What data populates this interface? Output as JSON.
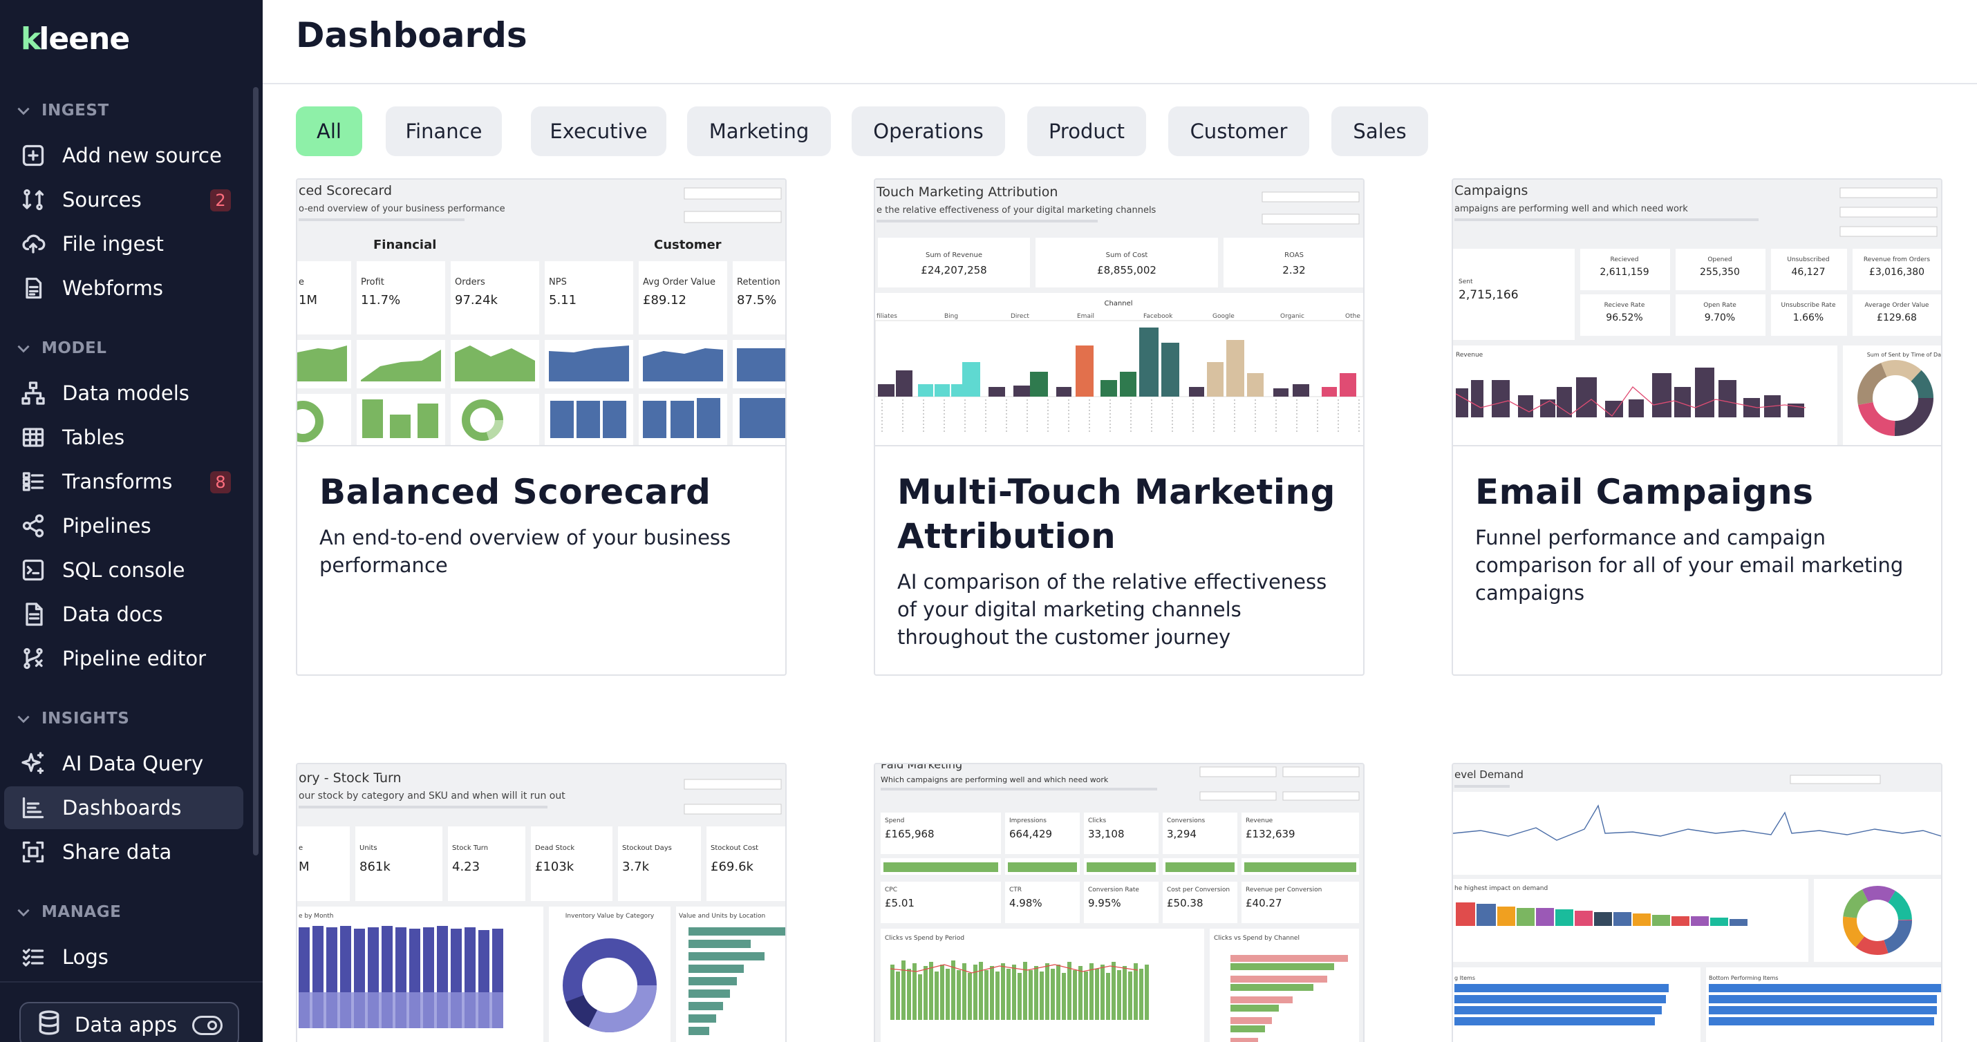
{
  "app": {
    "logo": "kleene"
  },
  "sidebar": {
    "sections": [
      {
        "label": "INGEST",
        "items": [
          {
            "label": "Add new source",
            "icon": "plus-square-icon"
          },
          {
            "label": "Sources",
            "icon": "sources-icon",
            "badge": "2"
          },
          {
            "label": "File ingest",
            "icon": "upload-cloud-icon"
          },
          {
            "label": "Webforms",
            "icon": "form-icon"
          }
        ]
      },
      {
        "label": "MODEL",
        "items": [
          {
            "label": "Data models",
            "icon": "hierarchy-icon"
          },
          {
            "label": "Tables",
            "icon": "table-icon"
          },
          {
            "label": "Transforms",
            "icon": "list-icon",
            "badge": "8"
          },
          {
            "label": "Pipelines",
            "icon": "share-nodes-icon"
          },
          {
            "label": "SQL console",
            "icon": "terminal-icon"
          },
          {
            "label": "Data docs",
            "icon": "document-icon"
          },
          {
            "label": "Pipeline editor",
            "icon": "pipeline-editor-icon"
          }
        ]
      },
      {
        "label": "INSIGHTS",
        "items": [
          {
            "label": "AI Data Query",
            "icon": "sparkle-icon"
          },
          {
            "label": "Dashboards",
            "icon": "dashboard-icon",
            "active": true
          },
          {
            "label": "Share data",
            "icon": "share-data-icon"
          }
        ]
      },
      {
        "label": "MANAGE",
        "items": [
          {
            "label": "Logs",
            "icon": "checklist-icon"
          }
        ]
      }
    ],
    "data_apps": {
      "label": "Data apps",
      "icon": "database-icon"
    }
  },
  "main": {
    "title": "Dashboards",
    "filters": [
      {
        "label": "All",
        "active": true
      },
      {
        "label": "Finance"
      },
      {
        "label": "Executive"
      },
      {
        "label": "Marketing"
      },
      {
        "label": "Operations"
      },
      {
        "label": "Product"
      },
      {
        "label": "Customer"
      },
      {
        "label": "Sales"
      }
    ],
    "cards": [
      {
        "title": "Balanced Scorecard",
        "description": "An end-to-end overview of your business performance",
        "thumb": {
          "heading": "ced Scorecard",
          "sub": "o-end overview of your business performance",
          "group1": "Financial",
          "group2": "Customer",
          "kpis": [
            {
              "label": "e",
              "value": "1M"
            },
            {
              "label": "Profit",
              "value": "11.7%"
            },
            {
              "label": "Orders",
              "value": "97.24k"
            },
            {
              "label": "NPS",
              "value": "5.11"
            },
            {
              "label": "Avg Order Value",
              "value": "£89.12"
            },
            {
              "label": "Retention",
              "value": "87.5%"
            }
          ]
        }
      },
      {
        "title": "Multi-Touch Marketing Attribution",
        "description": "AI comparison of the relative effectiveness of your digital marketing channels throughout the customer journey",
        "thumb": {
          "heading": "Touch Marketing Attribution",
          "sub": "e the relative effectiveness of your digital marketing channels",
          "kpis": [
            {
              "label": "Sum of Revenue",
              "value": "£24,207,258"
            },
            {
              "label": "Sum of Cost",
              "value": "£8,855,002"
            },
            {
              "label": "ROAS",
              "value": "2.32"
            }
          ],
          "channel_label": "Channel",
          "channels": [
            "filiates",
            "Bing",
            "Direct",
            "Email",
            "Facebook",
            "Google",
            "Organic",
            "Othe"
          ]
        }
      },
      {
        "title": "Email Campaigns",
        "description": "Funnel performance and campaign comparison for all of your email marketing campaigns",
        "thumb": {
          "heading": "Campaigns",
          "sub": "ampaigns are performing well and which need work",
          "kpis": [
            {
              "label": "Sent",
              "value": "2,715,166"
            },
            {
              "label": "Recieved",
              "value": "2,611,159"
            },
            {
              "label": "Opened",
              "value": "255,350"
            },
            {
              "label": "Unsubscribed",
              "value": "46,127"
            },
            {
              "label": "Revenue from Orders",
              "value": "£3,016,380"
            },
            {
              "label": "Recieve Rate",
              "value": "96.52%"
            },
            {
              "label": "Open Rate",
              "value": "9.70%"
            },
            {
              "label": "Unsubscribe Rate",
              "value": "1.66%"
            },
            {
              "label": "Average Order Value",
              "value": "£129.68"
            }
          ],
          "chart_label": "Revenue",
          "donut_label": "Sum of Sent by Time of Da"
        }
      },
      {
        "thumb": {
          "heading": "ory - Stock Turn",
          "sub": "our stock by category and SKU and when will it run out",
          "kpis": [
            {
              "label": "e",
              "value": "M"
            },
            {
              "label": "Units",
              "value": "861k"
            },
            {
              "label": "Stock Turn",
              "value": "4.23"
            },
            {
              "label": "Dead Stock",
              "value": "£103k"
            },
            {
              "label": "Stockout Days",
              "value": "3.7k"
            },
            {
              "label": "Stockout Cost",
              "value": "£69.6k"
            }
          ],
          "chart1": "e by Month",
          "chart2": "Inventory Value by Category",
          "chart3": "Value and Units by Location"
        }
      },
      {
        "thumb": {
          "heading": "Paid Marketing",
          "sub": "Which campaigns are performing well and which need work",
          "kpis": [
            {
              "label": "Spend",
              "value": "£165,968"
            },
            {
              "label": "Impressions",
              "value": "664,429"
            },
            {
              "label": "Clicks",
              "value": "33,108"
            },
            {
              "label": "Conversions",
              "value": "3,294"
            },
            {
              "label": "Revenue",
              "value": "£132,639"
            },
            {
              "label": "CPC",
              "value": "£5.01"
            },
            {
              "label": "CTR",
              "value": "4.98%"
            },
            {
              "label": "Conversion Rate",
              "value": "9.95%"
            },
            {
              "label": "Cost per Conversion",
              "value": "£50.38"
            },
            {
              "label": "Revenue per Conversion",
              "value": "£40.27"
            }
          ],
          "chart1": "Clicks vs Spend by Period",
          "chart2": "Clicks vs Spend by Channel"
        }
      },
      {
        "thumb": {
          "heading": "evel Demand",
          "chart1": "he highest impact on demand",
          "chart2": "g Items",
          "chart3": "Bottom Performing Items"
        }
      }
    ]
  }
}
